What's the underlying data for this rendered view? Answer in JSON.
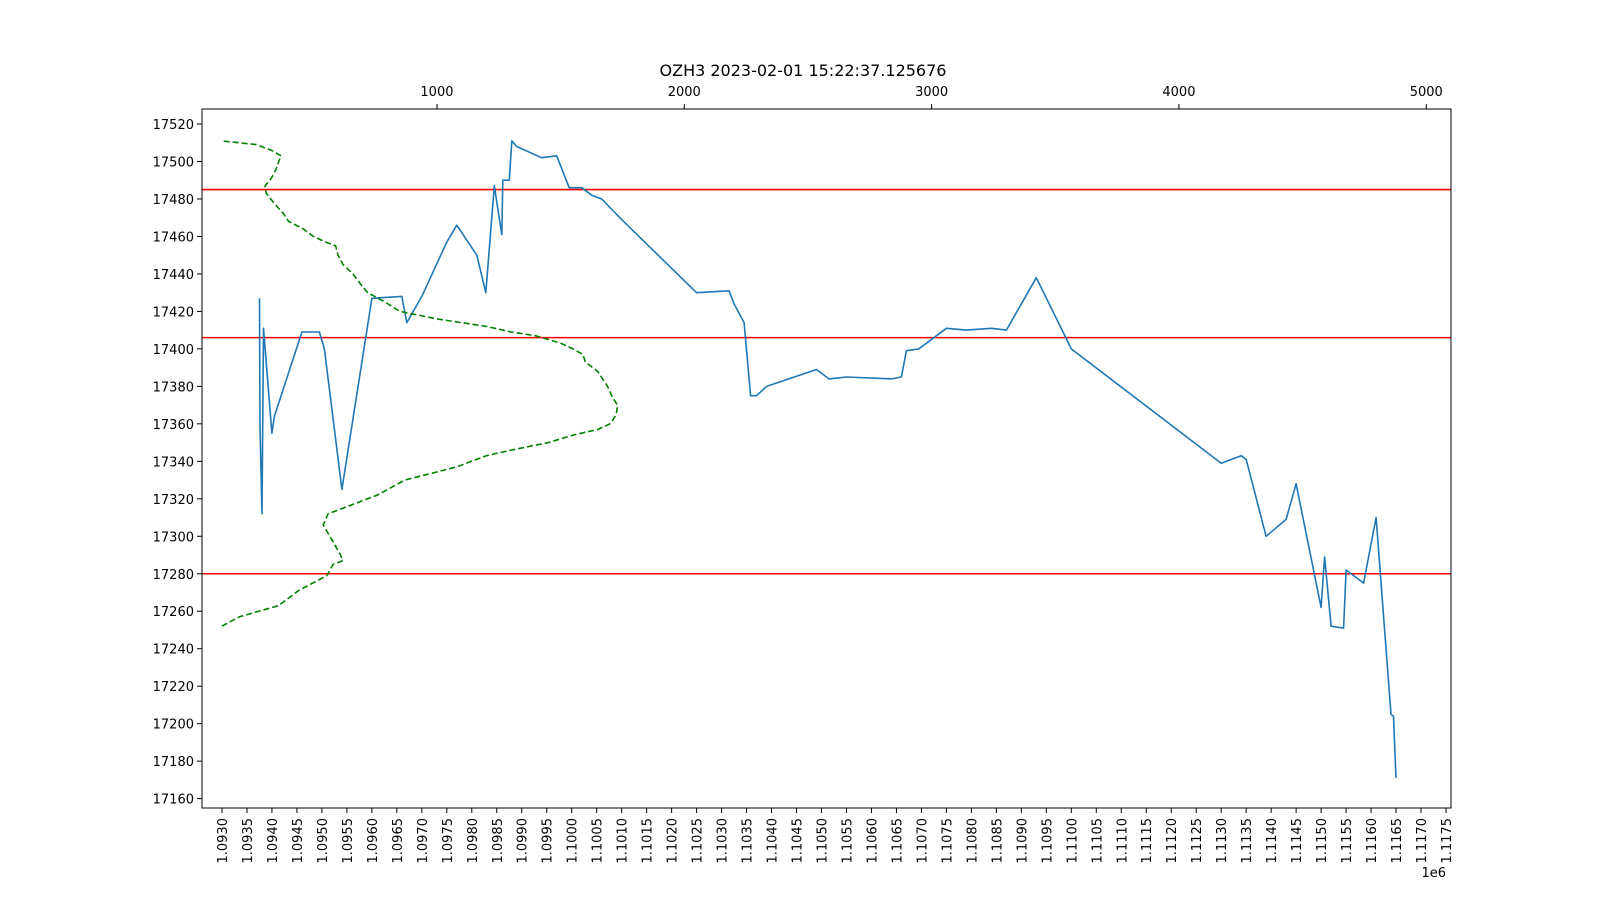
{
  "chart_data": {
    "type": "line",
    "title": "OZH3 2023-02-01 15:22:37.125676",
    "x_offset_label": "1e6",
    "xlim": [
      1092600,
      1117600
    ],
    "ylim": [
      17155,
      17528
    ],
    "x_ticks": [
      1.093,
      1.0935,
      1.094,
      1.0945,
      1.095,
      1.0955,
      1.096,
      1.0965,
      1.097,
      1.0975,
      1.098,
      1.0985,
      1.099,
      1.0995,
      1.1,
      1.1005,
      1.101,
      1.1015,
      1.102,
      1.1025,
      1.103,
      1.1035,
      1.104,
      1.1045,
      1.105,
      1.1055,
      1.106,
      1.1065,
      1.107,
      1.1075,
      1.108,
      1.1085,
      1.109,
      1.1095,
      1.11,
      1.1105,
      1.111,
      1.1115,
      1.112,
      1.1125,
      1.113,
      1.1135,
      1.114,
      1.1145,
      1.115,
      1.1155,
      1.116,
      1.1165,
      1.117,
      1.1175
    ],
    "x_tick_labels": [
      "1.0930",
      "1.0935",
      "1.0940",
      "1.0945",
      "1.0950",
      "1.0955",
      "1.0960",
      "1.0965",
      "1.0970",
      "1.0975",
      "1.0980",
      "1.0985",
      "1.0990",
      "1.0995",
      "1.1000",
      "1.1005",
      "1.1010",
      "1.1015",
      "1.1020",
      "1.1025",
      "1.1030",
      "1.1035",
      "1.1040",
      "1.1045",
      "1.1050",
      "1.1055",
      "1.1060",
      "1.1065",
      "1.1070",
      "1.1075",
      "1.1080",
      "1.1085",
      "1.1090",
      "1.1095",
      "1.1100",
      "1.1105",
      "1.1110",
      "1.1115",
      "1.1120",
      "1.1125",
      "1.1130",
      "1.1135",
      "1.1140",
      "1.1145",
      "1.1150",
      "1.1155",
      "1.1160",
      "1.1165",
      "1.1170",
      "1.1175"
    ],
    "y_ticks": [
      17160,
      17180,
      17200,
      17220,
      17240,
      17260,
      17280,
      17300,
      17320,
      17340,
      17360,
      17380,
      17400,
      17420,
      17440,
      17460,
      17480,
      17500,
      17520
    ],
    "y_tick_labels": [
      "17160",
      "17180",
      "17200",
      "17220",
      "17240",
      "17260",
      "17280",
      "17300",
      "17320",
      "17340",
      "17360",
      "17380",
      "17400",
      "17420",
      "17440",
      "17460",
      "17480",
      "17500",
      "17520"
    ],
    "top_xlim": [
      50,
      5100
    ],
    "top_ticks": [
      1000,
      2000,
      3000,
      4000,
      5000
    ],
    "top_tick_labels": [
      "1000",
      "2000",
      "3000",
      "4000",
      "5000"
    ],
    "horizontal_lines": [
      {
        "y": 17485,
        "color": "#ff0000"
      },
      {
        "y": 17406,
        "color": "#ff0000"
      },
      {
        "y": 17280,
        "color": "#ff0000"
      }
    ],
    "series": [
      {
        "style": "solid",
        "color": "#1f77b4",
        "axis": "bottom",
        "x": [
          1093750,
          1093760,
          1093800,
          1093830,
          1094000,
          1094050,
          1094600,
          1094950,
          1095050,
          1095400,
          1096000,
          1096600,
          1096700,
          1097000,
          1097500,
          1097700,
          1098100,
          1098280,
          1098450,
          1098600,
          1098620,
          1098750,
          1098800,
          1098900,
          1099400,
          1099700,
          1099950,
          1100200,
          1100400,
          1100600,
          1101000,
          1102500,
          1103150,
          1103250,
          1103450,
          1103580,
          1103650,
          1103700,
          1103900,
          1104900,
          1105150,
          1105500,
          1106400,
          1106600,
          1106700,
          1106950,
          1107500,
          1107900,
          1108400,
          1108700,
          1109300,
          1110000,
          1113000,
          1113400,
          1113500,
          1113900,
          1114300,
          1114500,
          1115000,
          1115070,
          1115200,
          1115450,
          1115500,
          1115850,
          1116100,
          1116400,
          1116450,
          1116500
        ],
        "y": [
          17427,
          17358,
          17312,
          17411,
          17355,
          17364,
          17409,
          17409,
          17400,
          17325,
          17427,
          17428,
          17414,
          17428,
          17457,
          17466,
          17450,
          17430,
          17487,
          17461,
          17490,
          17490,
          17511,
          17508,
          17502,
          17503,
          17486,
          17486,
          17482,
          17480,
          17469,
          17430,
          17431,
          17424,
          17414,
          17375,
          17375,
          17375,
          17380,
          17389,
          17384,
          17385,
          17384,
          17385,
          17399,
          17400,
          17411,
          17410,
          17411,
          17410,
          17438,
          17400,
          17339,
          17343,
          17341,
          17300,
          17309,
          17328,
          17262,
          17289,
          17252,
          17251,
          17282,
          17275,
          17310,
          17205,
          17204,
          17171
        ]
      },
      {
        "style": "dashed",
        "color": "#008000",
        "axis": "top",
        "x": [
          130,
          200,
          360,
          440,
          555,
          580,
          620,
          610,
          580,
          540,
          560,
          640,
          760,
          870,
          1080,
          1200,
          1300,
          1450,
          1550,
          1650,
          1700,
          1725,
          1730,
          1710,
          1690,
          1650,
          1600,
          1590,
          1550,
          1500,
          1450,
          1400,
          1300,
          1200,
          1000,
          850,
          790,
          720,
          700,
          660,
          620,
          600,
          590,
          550,
          500,
          460,
          400,
          380,
          340,
          310,
          305,
          330,
          350,
          360,
          370,
          330,
          270,
          130
        ],
        "y": [
          17252,
          17257,
          17263,
          17271,
          17279,
          17285,
          17287,
          17290,
          17297,
          17306,
          17312,
          17316,
          17322,
          17330,
          17337,
          17343,
          17346,
          17350,
          17354,
          17357,
          17360,
          17365,
          17370,
          17374,
          17380,
          17388,
          17393,
          17397,
          17400,
          17403,
          17405,
          17407,
          17409,
          17412,
          17416,
          17420,
          17425,
          17430,
          17433,
          17440,
          17445,
          17450,
          17455,
          17457,
          17460,
          17464,
          17468,
          17472,
          17478,
          17483,
          17487,
          17491,
          17496,
          17500,
          17503,
          17506,
          17509,
          17511
        ]
      }
    ]
  }
}
